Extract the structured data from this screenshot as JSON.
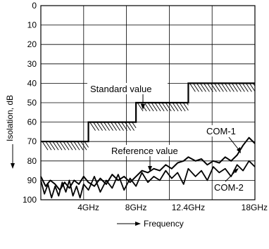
{
  "chart_data": {
    "type": "line",
    "title": "",
    "xlabel": "Frequency",
    "ylabel": "Isolation, dB",
    "ylim": [
      0,
      100
    ],
    "y_inverted": true,
    "y_ticks": [
      0,
      10,
      20,
      30,
      40,
      50,
      60,
      70,
      80,
      90,
      100
    ],
    "x_range_ghz": [
      0,
      18
    ],
    "x_tick_labels": [
      {
        "value": 4,
        "label": "4GHz"
      },
      {
        "value": 8,
        "label": "8GHz"
      },
      {
        "value": 12.4,
        "label": "12.4GHz"
      },
      {
        "value": 18,
        "label": "18GHz"
      }
    ],
    "grid": true,
    "standard_value": {
      "label": "Standard value",
      "steps": [
        {
          "x_start": 0,
          "x_end": 4,
          "isolation_db": 70
        },
        {
          "x_start": 4,
          "x_end": 8,
          "isolation_db": 60
        },
        {
          "x_start": 8,
          "x_end": 12.4,
          "isolation_db": 50
        },
        {
          "x_start": 12.4,
          "x_end": 18,
          "isolation_db": 40
        }
      ]
    },
    "reference_value_label": "Reference value",
    "series": [
      {
        "name": "COM-1",
        "x": [
          0,
          0.4,
          0.8,
          1.2,
          1.6,
          2.0,
          2.4,
          2.8,
          3.2,
          3.6,
          4.0,
          4.5,
          5.0,
          5.5,
          6.0,
          6.5,
          7.0,
          7.5,
          8.0,
          8.5,
          9.0,
          9.5,
          10.0,
          10.5,
          11.0,
          11.5,
          12.0,
          12.4,
          13.0,
          13.5,
          14.0,
          14.5,
          15.0,
          15.5,
          16.0,
          16.5,
          17.0,
          17.5,
          18.0
        ],
        "values": [
          88,
          93,
          90,
          92,
          95,
          91,
          94,
          90,
          92,
          88,
          91,
          93,
          89,
          92,
          87,
          90,
          88,
          91,
          88,
          85,
          86,
          84,
          85,
          82,
          84,
          81,
          80,
          78,
          80,
          79,
          82,
          80,
          81,
          78,
          80,
          77,
          72,
          68,
          71
        ]
      },
      {
        "name": "COM-2",
        "x": [
          0,
          0.3,
          0.6,
          0.9,
          1.2,
          1.5,
          1.8,
          2.1,
          2.4,
          2.7,
          3.0,
          3.3,
          3.6,
          4.0,
          4.5,
          5.0,
          5.5,
          6.0,
          6.5,
          7.0,
          7.5,
          8.0,
          8.5,
          9.0,
          9.5,
          10.0,
          10.5,
          11.0,
          11.5,
          12.0,
          12.4,
          13.0,
          13.5,
          14.0,
          14.5,
          15.0,
          15.5,
          16.0,
          16.5,
          17.0,
          17.5,
          18.0
        ],
        "values": [
          90,
          97,
          92,
          99,
          93,
          98,
          91,
          96,
          90,
          98,
          93,
          99,
          92,
          95,
          88,
          96,
          90,
          94,
          87,
          95,
          89,
          93,
          86,
          91,
          88,
          90,
          85,
          89,
          86,
          92,
          84,
          88,
          85,
          90,
          83,
          86,
          84,
          88,
          82,
          85,
          80,
          83
        ]
      }
    ]
  }
}
